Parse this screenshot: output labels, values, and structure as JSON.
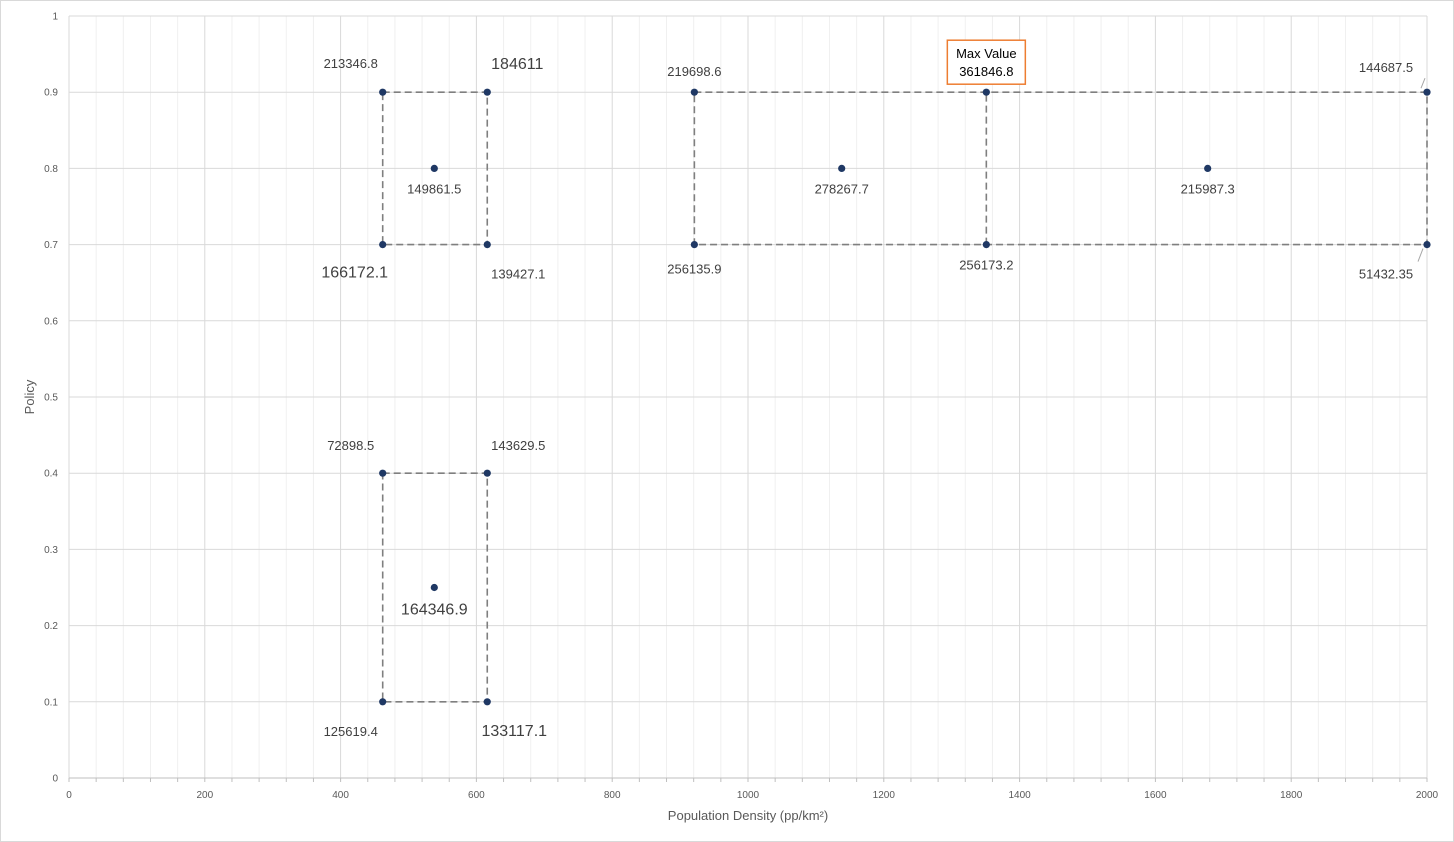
{
  "chart_data": {
    "type": "scatter",
    "xlabel": "Population Density (pp/km²)",
    "ylabel": "Policy",
    "xlim": [
      0,
      2000
    ],
    "ylim": [
      0,
      1
    ],
    "x_ticks": [
      "0",
      "200",
      "400",
      "600",
      "800",
      "1000",
      "1200",
      "1400",
      "1600",
      "1800",
      "2000"
    ],
    "y_ticks": [
      "0",
      "0.1",
      "0.2",
      "0.3",
      "0.4",
      "0.5",
      "0.6",
      "0.7",
      "0.8",
      "0.9",
      "1"
    ],
    "grid": true,
    "legend": "none",
    "point_color": "#1f3864",
    "line_color": "#7f7f7f",
    "points": [
      {
        "x": 462,
        "y": 0.9,
        "label": "213346.8"
      },
      {
        "x": 616,
        "y": 0.9,
        "label": "184611"
      },
      {
        "x": 538,
        "y": 0.8,
        "label": "149861.5"
      },
      {
        "x": 462,
        "y": 0.7,
        "label": "166172.1"
      },
      {
        "x": 616,
        "y": 0.7,
        "label": "139427.1"
      },
      {
        "x": 921,
        "y": 0.9,
        "label": "219698.6"
      },
      {
        "x": 1351,
        "y": 0.9,
        "label": "361846.8"
      },
      {
        "x": 2000,
        "y": 0.9,
        "label": "144687.5"
      },
      {
        "x": 1138,
        "y": 0.8,
        "label": "278267.7"
      },
      {
        "x": 1677,
        "y": 0.8,
        "label": "215987.3"
      },
      {
        "x": 921,
        "y": 0.7,
        "label": "256135.9"
      },
      {
        "x": 1351,
        "y": 0.7,
        "label": "256173.2"
      },
      {
        "x": 2000,
        "y": 0.7,
        "label": "51432.35"
      },
      {
        "x": 462,
        "y": 0.4,
        "label": "72898.5"
      },
      {
        "x": 616,
        "y": 0.4,
        "label": "143629.5"
      },
      {
        "x": 538,
        "y": 0.25,
        "label": "164346.9"
      },
      {
        "x": 462,
        "y": 0.1,
        "label": "125619.4"
      },
      {
        "x": 616,
        "y": 0.1,
        "label": "133117.1"
      }
    ],
    "dashed_boxes": [
      {
        "x": [
          462,
          616
        ],
        "y": [
          0.7,
          0.9
        ]
      },
      {
        "x": [
          921,
          2000
        ],
        "y": [
          0.7,
          0.9
        ]
      },
      {
        "x": [
          462,
          616
        ],
        "y": [
          0.1,
          0.4
        ]
      }
    ],
    "dashed_lines": [
      {
        "x": [
          1351,
          1351
        ],
        "y": [
          0.7,
          0.9
        ]
      }
    ],
    "annotations": [
      {
        "title": "Max Value",
        "value": "361846.8",
        "x": 1351,
        "y": 0.9,
        "border_color": "#ed7d31"
      }
    ]
  }
}
